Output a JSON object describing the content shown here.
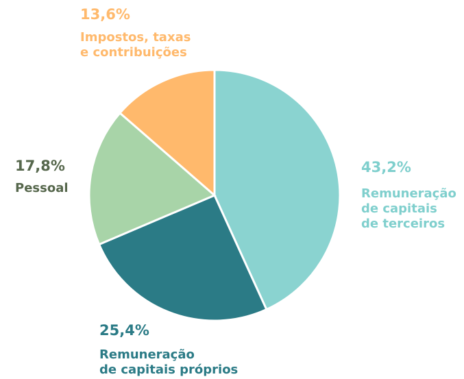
{
  "chart_data": {
    "type": "pie",
    "categories": [
      "Remuneração\nde capitais\nde terceiros",
      "Remuneração\nde capitais próprios",
      "Pessoal",
      "Impostos, taxas\ne contribuições"
    ],
    "values": [
      43.2,
      25.4,
      17.8,
      13.6
    ],
    "value_labels": [
      "43,2%",
      "25,4%",
      "17,8%",
      "13,6%"
    ],
    "colors": [
      "#8ad3d0",
      "#2b7b86",
      "#a8d4a8",
      "#ffb96c"
    ],
    "label_colors": [
      "#7fcfcd",
      "#2b7b86",
      "#56674c",
      "#ffb96c"
    ]
  }
}
